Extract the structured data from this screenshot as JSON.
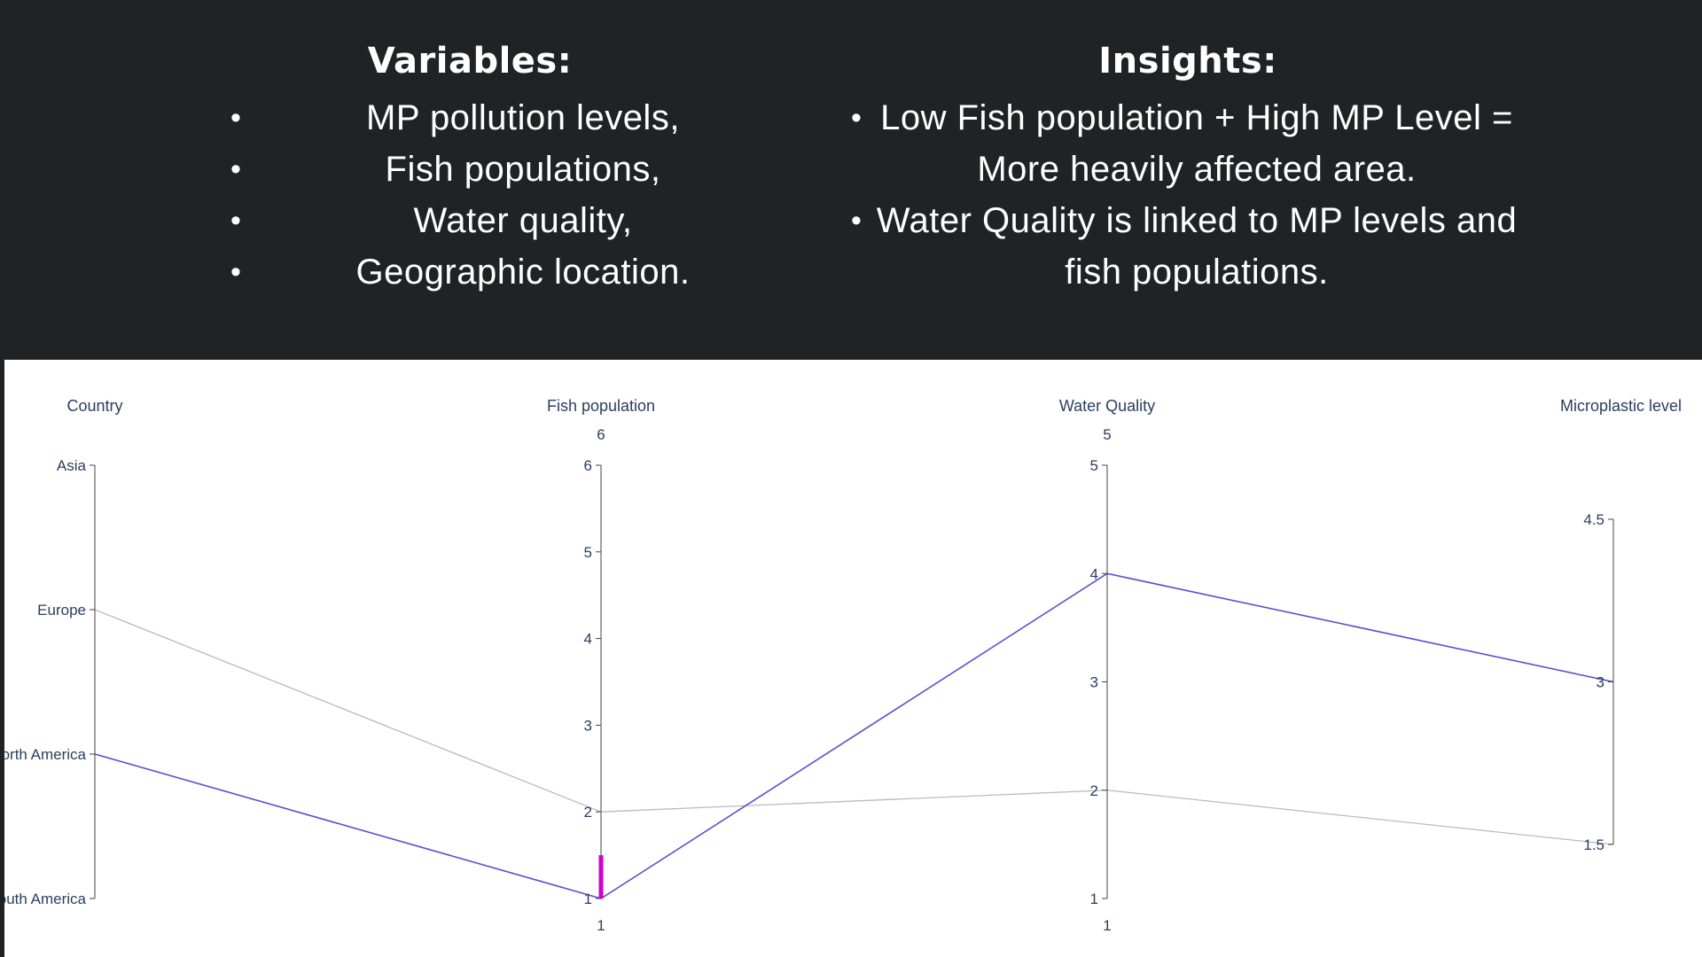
{
  "variables": {
    "heading": "Variables:",
    "items": [
      "MP pollution levels,",
      "Fish populations,",
      "Water quality,",
      "Geographic location."
    ]
  },
  "insights": {
    "heading": "Insights:",
    "items": [
      "Low Fish population + High MP Level = More heavily affected area.",
      "Water Quality is linked to MP levels and fish populations."
    ]
  },
  "bullet_symbol": "•",
  "chart_data": {
    "type": "parcoords",
    "dimensions": [
      {
        "label": "Country",
        "categorical": true,
        "tickvals": [
          0,
          1,
          2,
          3
        ],
        "ticktext": [
          "Asia",
          "Europe",
          "North America",
          "South America"
        ],
        "range": [
          0,
          3
        ],
        "reversed": true
      },
      {
        "label": "Fish population",
        "range": [
          1,
          6
        ],
        "tickvals": [
          1,
          2,
          3,
          4,
          5,
          6
        ],
        "ticktext": [
          "1",
          "2",
          "3",
          "4",
          "5",
          "6"
        ],
        "range_labels": [
          "6",
          "1"
        ],
        "constraint": [
          1,
          1.5
        ]
      },
      {
        "label": "Water Quality",
        "range": [
          1,
          5
        ],
        "tickvals": [
          1,
          2,
          3,
          4,
          5
        ],
        "ticktext": [
          "1",
          "2",
          "3",
          "4",
          "5"
        ],
        "range_labels": [
          "5",
          "1"
        ]
      },
      {
        "label": "Microplastic level",
        "range": [
          1.5,
          4.5
        ],
        "tickvals": [
          1.5,
          3,
          4.5
        ],
        "ticktext": [
          "1.5",
          "3",
          "4.5"
        ]
      }
    ],
    "records": [
      {
        "values": [
          2,
          1,
          4,
          3
        ],
        "selected": true
      },
      {
        "values": [
          1,
          2,
          2,
          1.5
        ],
        "selected": false
      }
    ],
    "colors": {
      "selected_line": "#5b4fd1",
      "unselected_line": "#bbbbbb",
      "axis": "#444444",
      "constraint": "#d000d0"
    }
  }
}
